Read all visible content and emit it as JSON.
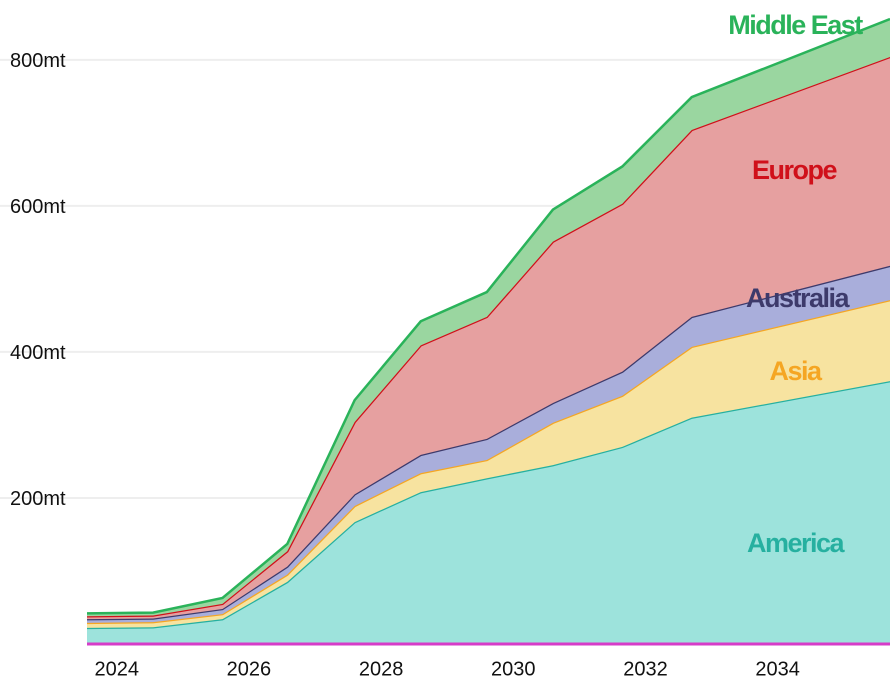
{
  "chart_data": {
    "type": "stacked-area",
    "x": [
      2023.55,
      2024.55,
      2025.6,
      2026.58,
      2027.6,
      2028.6,
      2029.6,
      2030.6,
      2031.65,
      2032.7,
      2035.7
    ],
    "series": [
      {
        "name": "America",
        "color": "#26b0a0",
        "fill": "#9de3dc",
        "values": [
          22,
          23,
          34,
          85,
          167,
          208,
          227,
          245,
          270,
          310,
          360
        ]
      },
      {
        "name": "Asia",
        "color": "#f5a623",
        "fill": "#f7e3a0",
        "values": [
          7,
          7,
          7,
          10,
          22,
          26,
          25,
          58,
          70,
          97,
          111
        ]
      },
      {
        "name": "Australia",
        "color": "#3d3a6b",
        "fill": "#a9aedb",
        "values": [
          5,
          5,
          7,
          11,
          16,
          25,
          29,
          27,
          33,
          41,
          47
        ]
      },
      {
        "name": "Europe",
        "color": "#d0101a",
        "fill": "#e6a0a0",
        "values": [
          4,
          4,
          7,
          21,
          99,
          150,
          167,
          221,
          230,
          256,
          286
        ]
      },
      {
        "name": "Middle East",
        "color": "#2ab35a",
        "fill": "#9ad6a0",
        "values": [
          4,
          4,
          8,
          10,
          30,
          33,
          34,
          44,
          51,
          45,
          52
        ]
      }
    ],
    "xlim": [
      2023.55,
      2035.7
    ],
    "xticks": [
      2024,
      2026,
      2028,
      2030,
      2032,
      2034
    ],
    "ylim": [
      0,
      882
    ],
    "yticks": [
      {
        "value": 200,
        "label": "200mt"
      },
      {
        "value": 400,
        "label": "400mt"
      },
      {
        "value": 600,
        "label": "600mt"
      },
      {
        "value": 800,
        "label": "800mt"
      }
    ],
    "grid": true
  }
}
